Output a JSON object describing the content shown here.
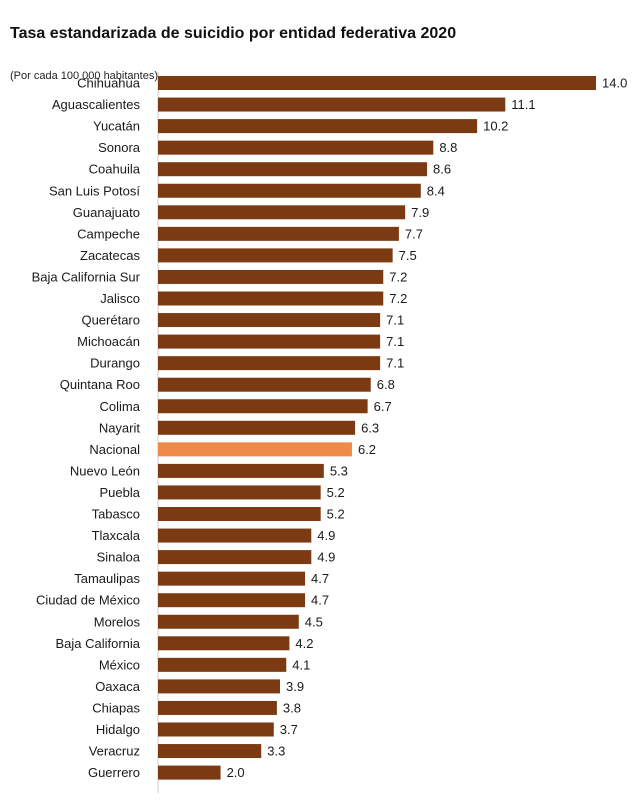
{
  "chart_data": {
    "type": "bar",
    "orientation": "horizontal",
    "title": "Tasa estandarizada de suicidio por entidad federativa 2020",
    "subtitle": "(Por cada 100 000 habitantes)",
    "xlim": [
      0,
      14.0
    ],
    "grid": false,
    "legend": "none",
    "categories": [
      "Chihuahua",
      "Aguascalientes",
      "Yucatán",
      "Sonora",
      "Coahuila",
      "San Luis Potosí",
      "Guanajuato",
      "Campeche",
      "Zacatecas",
      "Baja California Sur",
      "Jalisco",
      "Querétaro",
      "Michoacán",
      "Durango",
      "Quintana Roo",
      "Colima",
      "Nayarit",
      "Nacional",
      "Nuevo León",
      "Puebla",
      "Tabasco",
      "Tlaxcala",
      "Sinaloa",
      "Tamaulipas",
      "Ciudad de México",
      "Morelos",
      "Baja California",
      "México",
      "Oaxaca",
      "Chiapas",
      "Hidalgo",
      "Veracruz",
      "Guerrero"
    ],
    "values": [
      14.0,
      11.1,
      10.2,
      8.8,
      8.6,
      8.4,
      7.9,
      7.7,
      7.5,
      7.2,
      7.2,
      7.1,
      7.1,
      7.1,
      6.8,
      6.7,
      6.3,
      6.2,
      5.3,
      5.2,
      5.2,
      4.9,
      4.9,
      4.7,
      4.7,
      4.5,
      4.2,
      4.1,
      3.9,
      3.8,
      3.7,
      3.3,
      2.0
    ],
    "value_labels": [
      "14.0",
      "11.1",
      "10.2",
      "8.8",
      "8.6",
      "8.4",
      "7.9",
      "7.7",
      "7.5",
      "7.2",
      "7.2",
      "7.1",
      "7.1",
      "7.1",
      "6.8",
      "6.7",
      "6.3",
      "6.2",
      "5.3",
      "5.2",
      "5.2",
      "4.9",
      "4.9",
      "4.7",
      "4.7",
      "4.5",
      "4.2",
      "4.1",
      "3.9",
      "3.8",
      "3.7",
      "3.3",
      "2.0"
    ],
    "highlight_category": "Nacional",
    "colors": {
      "bar": "#7b3a12",
      "highlight": "#f08a4b",
      "axis": "#cccccc"
    }
  }
}
